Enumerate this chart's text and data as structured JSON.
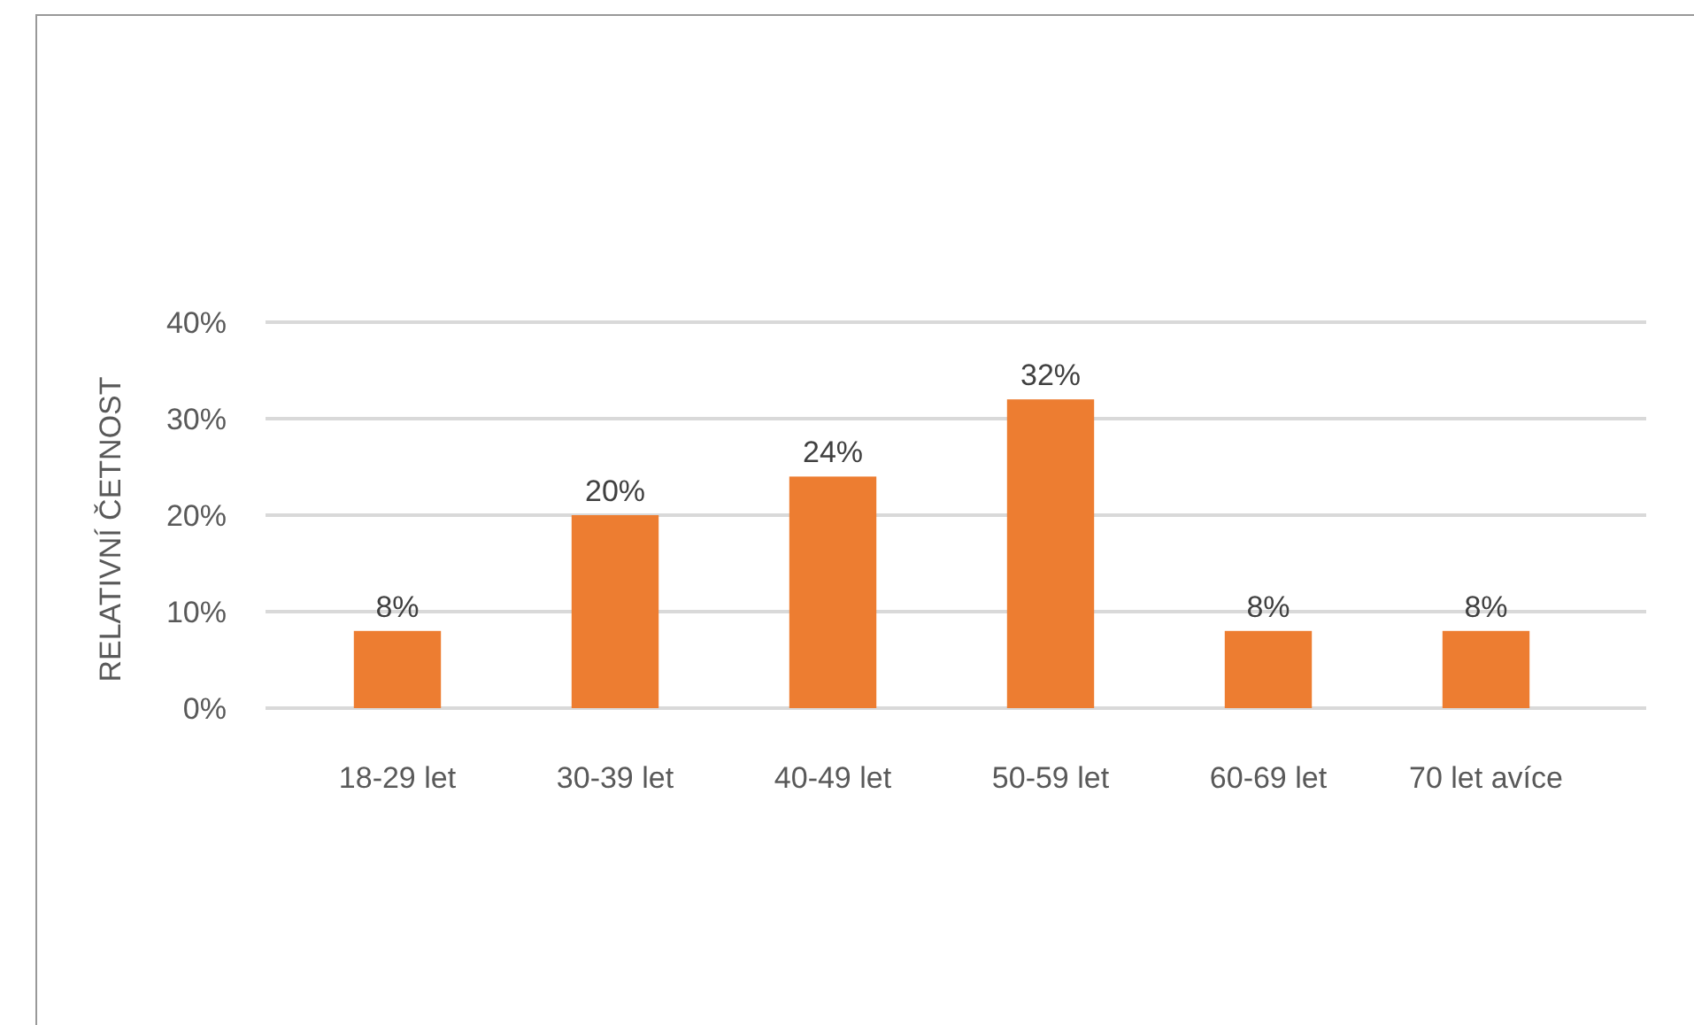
{
  "chart_data": {
    "type": "bar",
    "ylabel": "RELATIVNÍ ČETNOST",
    "categories": [
      "18-29 let",
      "30-39 let",
      "40-49 let",
      "50-59 let",
      "60-69 let",
      "70 let avíce"
    ],
    "values": [
      8,
      20,
      24,
      32,
      8,
      8
    ],
    "value_labels": [
      "8%",
      "20%",
      "24%",
      "32%",
      "8%",
      "8%"
    ],
    "color": "#ed7d31",
    "ylim": [
      0,
      40
    ],
    "yticks": [
      {
        "value": 0,
        "label": "0%"
      },
      {
        "value": 10,
        "label": "10%"
      },
      {
        "value": 20,
        "label": "20%"
      },
      {
        "value": 30,
        "label": "30%"
      },
      {
        "value": 40,
        "label": "40%"
      }
    ],
    "grid": "y"
  }
}
